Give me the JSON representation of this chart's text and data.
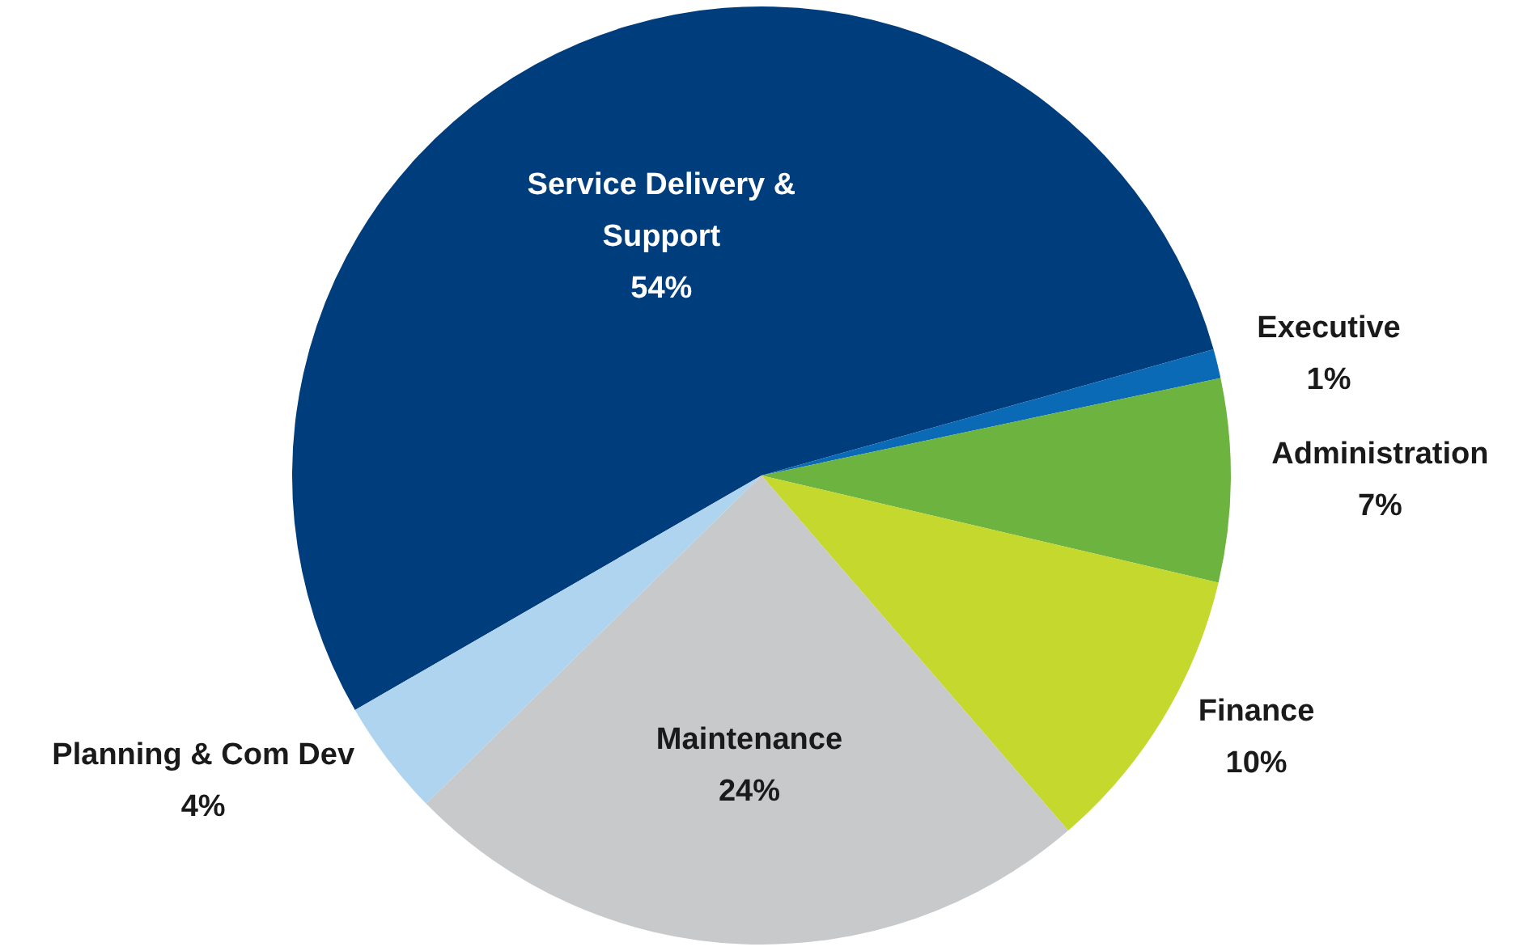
{
  "chart_data": {
    "type": "pie",
    "categories": [
      "Service Delivery & Support",
      "Executive",
      "Administration",
      "Finance",
      "Maintenance",
      "Planning & Com Dev"
    ],
    "values": [
      54,
      1,
      7,
      10,
      24,
      4
    ],
    "value_labels": [
      "54%",
      "1%",
      "7%",
      "10%",
      "24%",
      "4%"
    ],
    "colors": [
      "#003d7c",
      "#0a6ab6",
      "#6db33f",
      "#c4d82e",
      "#c8c9cb",
      "#aed4ef"
    ],
    "legend": false
  }
}
